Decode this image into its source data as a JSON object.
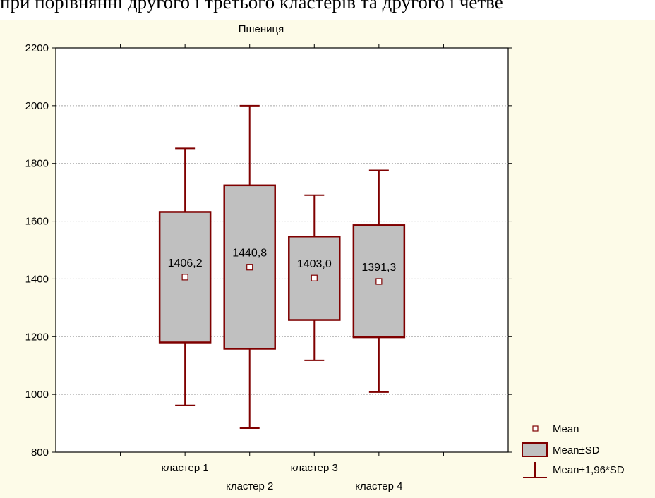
{
  "caption": "при порівнянні другого і третього кластерів та другого і четве",
  "chart_data": {
    "type": "boxplot",
    "title": "Пшениця",
    "xlabel": "",
    "ylabel": "",
    "ylim": [
      800,
      2200
    ],
    "yticks": [
      800,
      1000,
      1200,
      1400,
      1600,
      1800,
      2000,
      2200
    ],
    "grid": true,
    "categories": [
      "кластер 1",
      "кластер 2",
      "кластер 3",
      "кластер 4"
    ],
    "series": [
      {
        "mean": 1406.2,
        "box_low": 1180,
        "box_high": 1632,
        "whisker_low": 962,
        "whisker_high": 1852,
        "label": "1406,2"
      },
      {
        "mean": 1440.8,
        "box_low": 1158,
        "box_high": 1724,
        "whisker_low": 883,
        "whisker_high": 2000,
        "label": "1440,8"
      },
      {
        "mean": 1403.0,
        "box_low": 1258,
        "box_high": 1547,
        "whisker_low": 1118,
        "whisker_high": 1690,
        "label": "1403,0"
      },
      {
        "mean": 1391.3,
        "box_low": 1198,
        "box_high": 1586,
        "whisker_low": 1008,
        "whisker_high": 1776,
        "label": "1391,3"
      }
    ],
    "legend": {
      "placement": "bottom-right",
      "items": [
        "Mean",
        "Mean±SD",
        "Mean±1,96*SD"
      ]
    },
    "colors": {
      "box_fill": "#c0c0c0",
      "box_stroke": "#7f0000",
      "grid": "#a8a8a8",
      "background": "#fdfbe8",
      "plot_background": "#ffffff"
    }
  }
}
